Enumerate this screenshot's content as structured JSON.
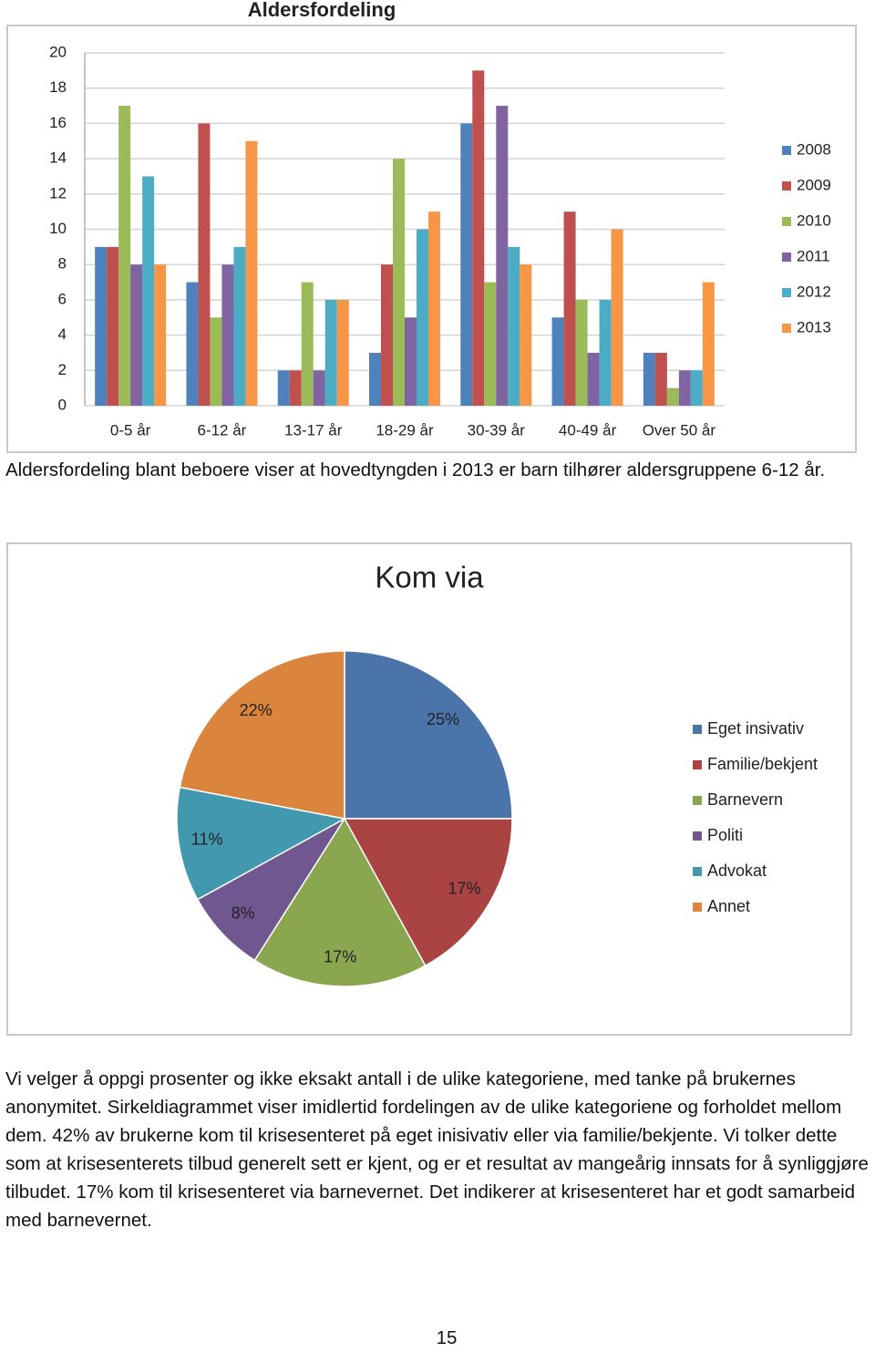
{
  "chart_data": [
    {
      "type": "bar",
      "title": "Aldersfordeling",
      "categories": [
        "0-5 år",
        "6-12 år",
        "13-17 år",
        "18-29 år",
        "30-39 år",
        "40-49 år",
        "Over 50 år"
      ],
      "series": [
        {
          "name": "2008",
          "color": "#4f81bd",
          "values": [
            9,
            7,
            2,
            3,
            16,
            5,
            3
          ]
        },
        {
          "name": "2009",
          "color": "#c0504d",
          "values": [
            9,
            16,
            2,
            8,
            19,
            11,
            3
          ]
        },
        {
          "name": "2010",
          "color": "#9bbb59",
          "values": [
            17,
            5,
            7,
            14,
            7,
            6,
            1
          ]
        },
        {
          "name": "2011",
          "color": "#8064a2",
          "values": [
            8,
            8,
            2,
            5,
            17,
            3,
            2
          ]
        },
        {
          "name": "2012",
          "color": "#4bacc6",
          "values": [
            13,
            9,
            6,
            10,
            9,
            6,
            2
          ]
        },
        {
          "name": "2013",
          "color": "#f79646",
          "values": [
            8,
            15,
            6,
            11,
            8,
            10,
            7
          ]
        }
      ],
      "ylim": [
        0,
        20
      ],
      "yticks": [
        0,
        2,
        4,
        6,
        8,
        10,
        12,
        14,
        16,
        18,
        20
      ],
      "grid": true,
      "legend": "right"
    },
    {
      "type": "pie",
      "title": "Kom via",
      "categories": [
        "Eget insivativ",
        "Familie/bekjent",
        "Barnevern",
        "Politi",
        "Advokat",
        "Annet"
      ],
      "values": [
        25,
        17,
        17,
        8,
        11,
        22
      ],
      "value_labels": [
        "25%",
        "17%",
        "17%",
        "8%",
        "11%",
        "22%"
      ],
      "colors": [
        "#4a74aa",
        "#a94442",
        "#8aa64f",
        "#71578f",
        "#4198af",
        "#db843d"
      ],
      "legend": "right"
    }
  ],
  "document": {
    "caption": "Aldersfordeling blant beboere viser at hovedtyngden i 2013 er barn tilhører aldersgruppene 6-12 år.",
    "paragraph": "Vi velger å oppgi prosenter og ikke eksakt antall i de ulike kategoriene, med tanke på brukernes anonymitet. Sirkeldiagrammet viser imidlertid fordelingen av de ulike kategoriene og forholdet mellom dem. 42% av brukerne kom til krisesenteret på eget inisivativ eller via familie/bekjente. Vi tolker dette som at krisesenterets tilbud generelt sett er kjent, og er et resultat av mangeårig innsats for å synliggjøre tilbudet. 17% kom til krisesenteret via barnevernet. Det indikerer at krisesenteret har et godt samarbeid med barnevernet.",
    "page_number": "15"
  }
}
